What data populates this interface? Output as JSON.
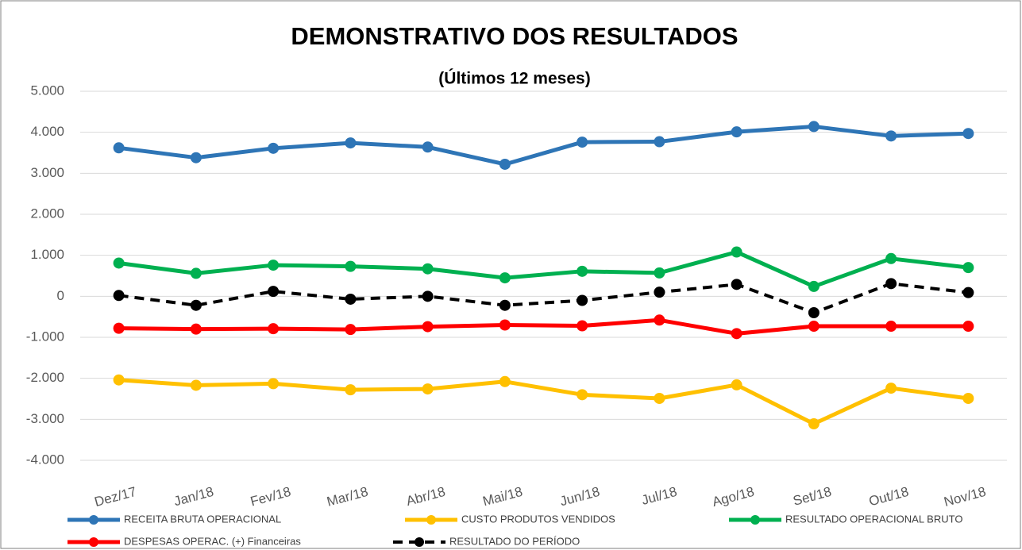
{
  "chart_data": {
    "type": "line",
    "title": "DEMONSTRATIVO DOS RESULTADOS",
    "subtitle": "(Últimos 12 meses)",
    "categories": [
      "Dez/17",
      "Jan/18",
      "Fev/18",
      "Mar/18",
      "Abr/18",
      "Mai/18",
      "Jun/18",
      "Jul/18",
      "Ago/18",
      "Set/18",
      "Out/18",
      "Nov/18"
    ],
    "series": [
      {
        "name": "RECEITA BRUTA OPERACIONAL",
        "color": "#2e75b6",
        "line_style": "solid",
        "values": [
          3620,
          3380,
          3610,
          3740,
          3640,
          3220,
          3760,
          3770,
          4010,
          4140,
          3910,
          3970
        ]
      },
      {
        "name": "CUSTO PRODUTOS VENDIDOS",
        "color": "#ffc000",
        "line_style": "solid",
        "values": [
          -2040,
          -2170,
          -2130,
          -2280,
          -2260,
          -2080,
          -2400,
          -2490,
          -2160,
          -3110,
          -2240,
          -2490
        ]
      },
      {
        "name": "RESULTADO OPERACIONAL BRUTO",
        "color": "#00b050",
        "line_style": "solid",
        "values": [
          810,
          560,
          760,
          730,
          670,
          450,
          610,
          570,
          1080,
          240,
          920,
          700
        ]
      },
      {
        "name": "DESPESAS OPERAC. (+) Financeiras",
        "color": "#ff0000",
        "line_style": "solid",
        "values": [
          -780,
          -800,
          -790,
          -810,
          -740,
          -700,
          -720,
          -580,
          -910,
          -730,
          -730,
          -730
        ]
      },
      {
        "name": "RESULTADO DO PERÍODO",
        "color": "#000000",
        "line_style": "dashed",
        "values": [
          20,
          -220,
          120,
          -70,
          0,
          -220,
          -100,
          100,
          290,
          -400,
          310,
          90
        ]
      }
    ],
    "ylim": [
      -4000,
      5000
    ],
    "yticks": [
      {
        "value": -4000,
        "label": "-4.000"
      },
      {
        "value": -3000,
        "label": "-3.000"
      },
      {
        "value": -2000,
        "label": "-2.000"
      },
      {
        "value": -1000,
        "label": "-1.000"
      },
      0,
      {
        "value": 1000,
        "label": "1.000"
      },
      {
        "value": 2000,
        "label": "2.000"
      },
      {
        "value": 3000,
        "label": "3.000"
      },
      {
        "value": 4000,
        "label": "4.000"
      },
      {
        "value": 5000,
        "label": "5.000"
      }
    ],
    "grid": true,
    "legend": "bottom"
  }
}
